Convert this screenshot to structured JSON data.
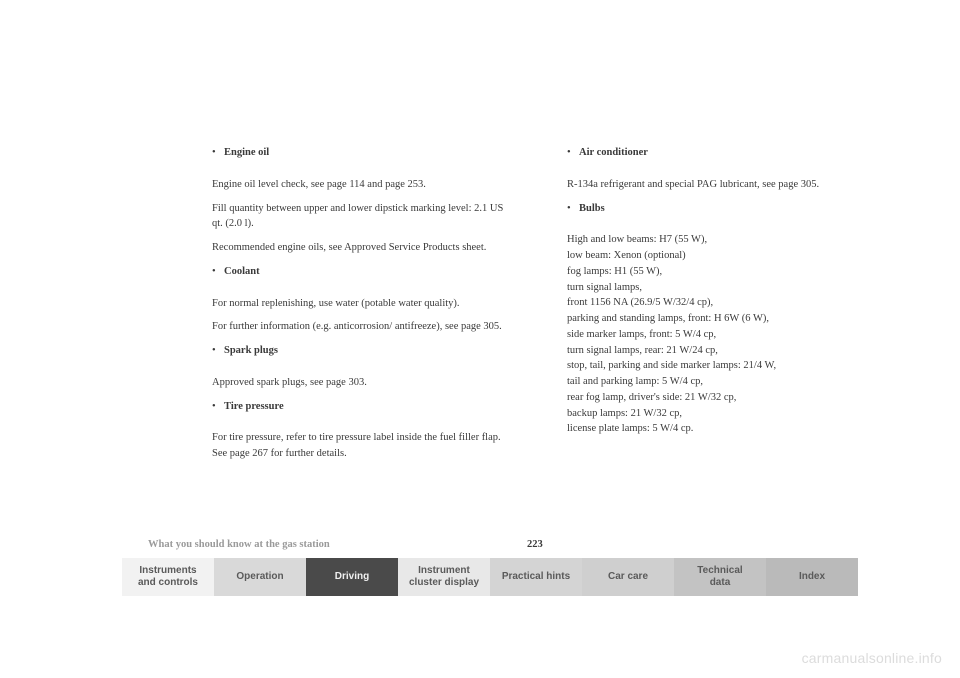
{
  "left_column": {
    "engine_oil": {
      "heading": "Engine oil",
      "p1": "Engine oil level check, see page 114 and page 253.",
      "p2": "Fill quantity between upper and lower dipstick marking level: 2.1 US qt. (2.0 l).",
      "p3": "Recommended engine oils, see Approved Service Products sheet."
    },
    "coolant": {
      "heading": "Coolant",
      "p1": "For normal replenishing, use water (potable water quality).",
      "p2": "For further information (e.g. anticorrosion/ antifreeze), see page 305."
    },
    "spark_plugs": {
      "heading": "Spark plugs",
      "p1": "Approved spark plugs, see page 303."
    },
    "tire_pressure": {
      "heading": "Tire pressure",
      "p1": "For tire pressure, refer to tire pressure label inside the fuel filler flap. See page 267 for further details."
    }
  },
  "right_column": {
    "air_conditioner": {
      "heading": "Air conditioner",
      "p1": "R-134a refrigerant and special PAG lubricant, see page 305."
    },
    "bulbs": {
      "heading": "Bulbs",
      "p1": "High and low beams: H7 (55 W),\nlow beam: Xenon (optional)\nfog lamps: H1 (55 W),\nturn signal lamps,\nfront 1156 NA (26.9/5 W/32/4 cp),\nparking and standing lamps, front: H 6W (6 W),\nside marker lamps, front: 5 W/4 cp,\nturn signal lamps, rear: 21 W/24 cp,\nstop, tail, parking and side marker lamps: 21/4 W,\ntail and parking lamp: 5 W/4 cp,\nrear fog lamp, driver's side: 21 W/32 cp,\nbackup lamps: 21 W/32 cp,\nlicense plate lamps: 5 W/4 cp."
    }
  },
  "footer": {
    "title": "What you should know at the gas station",
    "page_number": "223"
  },
  "nav": {
    "items": [
      {
        "label": "Instruments\nand controls",
        "bg": "#f2f2f2"
      },
      {
        "label": "Operation",
        "bg": "#d9d9d9"
      },
      {
        "label": "Driving",
        "bg": "#4a4a4a",
        "fg": "#f0f0f0"
      },
      {
        "label": "Instrument\ncluster display",
        "bg": "#e8e8e8"
      },
      {
        "label": "Practical hints",
        "bg": "#d4d4d4"
      },
      {
        "label": "Car care",
        "bg": "#cfcfcf"
      },
      {
        "label": "Technical\ndata",
        "bg": "#c3c3c3"
      },
      {
        "label": "Index",
        "bg": "#bababa"
      }
    ]
  },
  "watermark": "carmanualsonline.info",
  "bullet": "•"
}
